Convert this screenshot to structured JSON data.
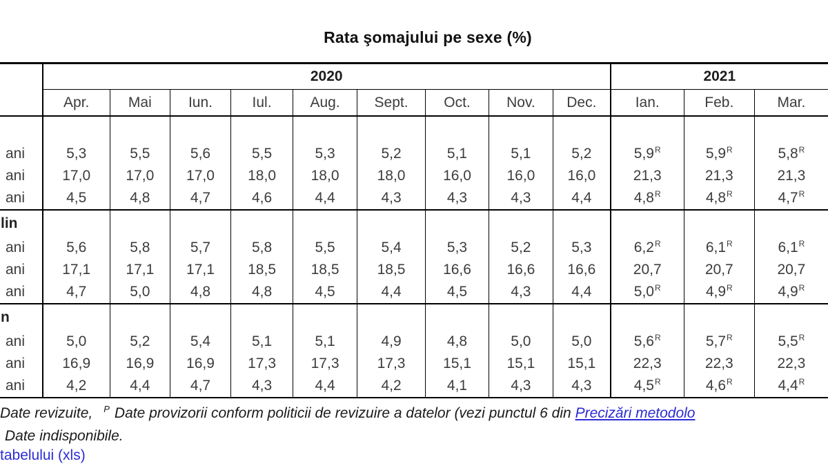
{
  "title": "Rata şomajului pe sexe (%)",
  "table": {
    "year_groups": [
      {
        "label": "2020",
        "span": 9
      },
      {
        "label": "2021",
        "span": 3
      }
    ],
    "months_2020": [
      "Apr.",
      "Mai",
      "Iun.",
      "Iul.",
      "Aug.",
      "Sept.",
      "Oct.",
      "Nov.",
      "Dec."
    ],
    "months_2021": [
      "Ian.",
      "Feb.",
      "Mar."
    ],
    "revised_marker": "R",
    "sections": [
      {
        "label_fragment": "",
        "rows": [
          {
            "label_fragment": "ani",
            "v2020": [
              "5,3",
              "5,5",
              "5,6",
              "5,5",
              "5,3",
              "5,2",
              "5,1",
              "5,1",
              "5,2"
            ],
            "v2021": [
              "5,9R",
              "5,9R",
              "5,8R"
            ]
          },
          {
            "label_fragment": "ani",
            "v2020": [
              "17,0",
              "17,0",
              "17,0",
              "18,0",
              "18,0",
              "18,0",
              "16,0",
              "16,0",
              "16,0"
            ],
            "v2021": [
              "21,3",
              "21,3",
              "21,3"
            ]
          },
          {
            "label_fragment": "ani",
            "v2020": [
              "4,5",
              "4,8",
              "4,7",
              "4,6",
              "4,4",
              "4,3",
              "4,3",
              "4,3",
              "4,4"
            ],
            "v2021": [
              "4,8R",
              "4,8R",
              "4,7R"
            ]
          }
        ]
      },
      {
        "label_fragment": "lin",
        "rows": [
          {
            "label_fragment": "ani",
            "v2020": [
              "5,6",
              "5,8",
              "5,7",
              "5,8",
              "5,5",
              "5,4",
              "5,3",
              "5,2",
              "5,3"
            ],
            "v2021": [
              "6,2R",
              "6,1R",
              "6,1R"
            ]
          },
          {
            "label_fragment": "ani",
            "v2020": [
              "17,1",
              "17,1",
              "17,1",
              "18,5",
              "18,5",
              "18,5",
              "16,6",
              "16,6",
              "16,6"
            ],
            "v2021": [
              "20,7",
              "20,7",
              "20,7"
            ]
          },
          {
            "label_fragment": "ani",
            "v2020": [
              "4,7",
              "5,0",
              "4,8",
              "4,8",
              "4,5",
              "4,4",
              "4,5",
              "4,3",
              "4,4"
            ],
            "v2021": [
              "5,0R",
              "4,9R",
              "4,9R"
            ]
          }
        ]
      },
      {
        "label_fragment": "n",
        "rows": [
          {
            "label_fragment": "ani",
            "v2020": [
              "5,0",
              "5,2",
              "5,4",
              "5,1",
              "5,1",
              "4,9",
              "4,8",
              "5,0",
              "5,0"
            ],
            "v2021": [
              "5,6R",
              "5,7R",
              "5,5R"
            ]
          },
          {
            "label_fragment": "ani",
            "v2020": [
              "16,9",
              "16,9",
              "16,9",
              "17,3",
              "17,3",
              "17,3",
              "15,1",
              "15,1",
              "15,1"
            ],
            "v2021": [
              "22,3",
              "22,3",
              "22,3"
            ]
          },
          {
            "label_fragment": "ani",
            "v2020": [
              "4,2",
              "4,4",
              "4,7",
              "4,3",
              "4,4",
              "4,2",
              "4,1",
              "4,3",
              "4,3"
            ],
            "v2021": [
              "4,5R",
              "4,6R",
              "4,4R"
            ]
          }
        ]
      }
    ]
  },
  "footnotes": {
    "line1_text1": "Date revizuite,",
    "line1_sup": "P",
    "line1_text2": "Date provizorii  conform politicii de revizuire a datelor (vezi punctul 6 din",
    "line1_link": "Precizări metodolo",
    "line2": "Date indisponibile.",
    "line3_link": "tabelului (xls)"
  },
  "colors": {
    "link": "#2b2bd5",
    "text": "#3c3c3c",
    "border": "#000000",
    "background": "#ffffff"
  }
}
